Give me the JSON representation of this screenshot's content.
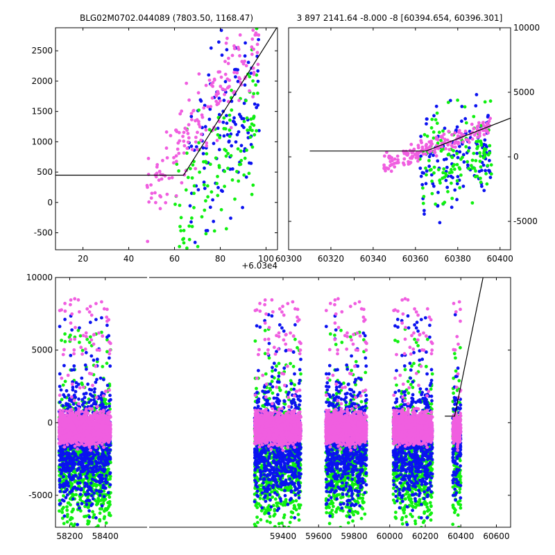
{
  "colors": {
    "blue": "#0a12f0",
    "green": "#10f010",
    "magenta": "#f05ee0",
    "line": "#000000"
  },
  "chart_data": [
    {
      "id": "top_left",
      "type": "scatter",
      "title": "BLG02M0702.044089 (7803.50, 1168.47)",
      "x_offset_label": "+6.03e4",
      "xlim": [
        8,
        105
      ],
      "ylim": [
        -780,
        2880
      ],
      "x_ticks": [
        20,
        40,
        60,
        80,
        100
      ],
      "y_ticks": [
        -500,
        0,
        500,
        1000,
        1500,
        2000,
        2500
      ],
      "y_axis_side": "left",
      "model_line": [
        [
          8,
          450
        ],
        [
          64,
          450
        ],
        [
          105,
          2900
        ]
      ],
      "series": [
        {
          "color": "blue",
          "x_range": [
            66,
            97
          ],
          "y_center": 500,
          "y_spread": 1500
        },
        {
          "color": "green",
          "x_range": [
            60,
            97
          ],
          "y_center": 200,
          "y_spread": 1200
        },
        {
          "color": "magenta",
          "x_range": [
            48,
            97
          ],
          "y_center": 1300,
          "y_spread": 700
        }
      ]
    },
    {
      "id": "top_right",
      "type": "scatter",
      "title": "3 897 2141.64 -8.000 -8 [60394.654, 60396.301]",
      "xlim": [
        60300,
        60405
      ],
      "ylim": [
        -7200,
        10000
      ],
      "x_ticks": [
        60300,
        60320,
        60340,
        60360,
        60380,
        60400
      ],
      "y_ticks": [
        -5000,
        0,
        5000,
        10000
      ],
      "y_axis_side": "right",
      "model_line": [
        [
          60310,
          450
        ],
        [
          60365,
          450
        ],
        [
          60405,
          3000
        ]
      ],
      "series": [
        {
          "color": "blue",
          "x_range": [
            60362,
            60396
          ],
          "y_center": -1000,
          "y_spread": 4000
        },
        {
          "color": "green",
          "x_range": [
            60362,
            60396
          ],
          "y_center": -500,
          "y_spread": 3500
        },
        {
          "color": "magenta",
          "x_range": [
            60345,
            60396
          ],
          "y_center": 900,
          "y_spread": 700
        }
      ]
    },
    {
      "id": "bottom",
      "type": "scatter",
      "xlim": [
        58120,
        60680
      ],
      "ylim": [
        -7200,
        10000
      ],
      "x_ticks": [
        58200,
        58400,
        59400,
        59600,
        59800,
        60000,
        60200,
        60400,
        60600
      ],
      "y_ticks": [
        -5000,
        0,
        5000,
        10000
      ],
      "y_axis_side": "left",
      "model_line": [
        [
          60310,
          450
        ],
        [
          60365,
          450
        ],
        [
          60525,
          10000
        ]
      ],
      "seasons": [
        [
          58140,
          58430
        ],
        [
          59240,
          59500
        ],
        [
          59640,
          59870
        ],
        [
          60020,
          60240
        ],
        [
          60355,
          60400
        ]
      ],
      "series": [
        {
          "color": "blue",
          "y_center": -1500,
          "y_spread": 3500
        },
        {
          "color": "green",
          "y_center": -2500,
          "y_spread": 4000
        },
        {
          "color": "magenta",
          "y_center": -400,
          "y_spread": 900
        }
      ]
    }
  ]
}
